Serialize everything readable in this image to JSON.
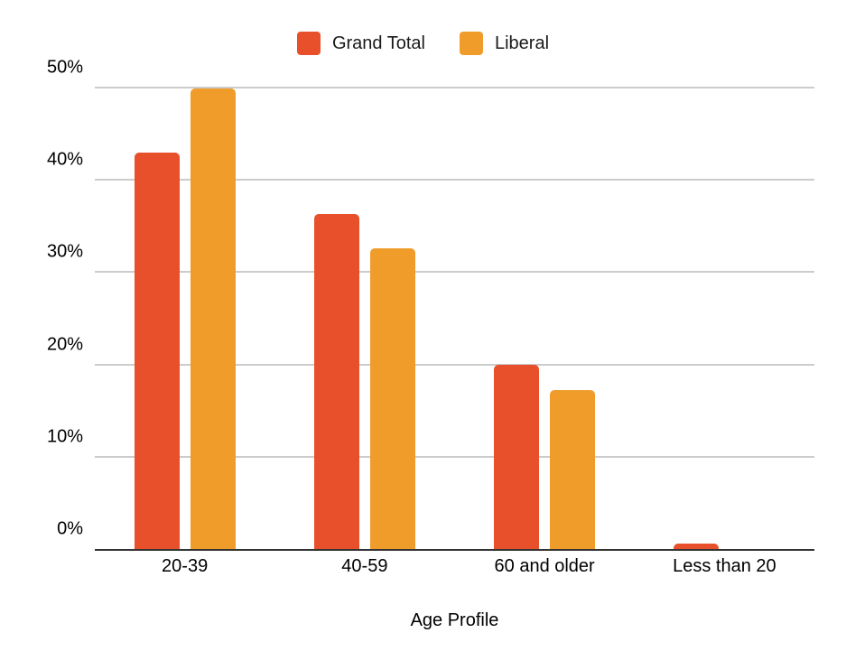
{
  "chart_data": {
    "type": "bar",
    "categories": [
      "20-39",
      "40-59",
      "60 and older",
      "Less than 20"
    ],
    "series": [
      {
        "name": "Grand Total",
        "color": "#E8502B",
        "values": [
          43.0,
          36.3,
          20.0,
          0.6
        ]
      },
      {
        "name": "Liberal",
        "color": "#F09C2B",
        "values": [
          49.9,
          32.6,
          17.2,
          0.0
        ]
      }
    ],
    "xlabel": "Age Profile",
    "ylabel": "",
    "ylim": [
      0,
      50
    ],
    "yticks": [
      "0%",
      "10%",
      "20%",
      "30%",
      "40%",
      "50%"
    ],
    "grid": true,
    "legend_position": "top",
    "colors": {
      "gridline": "#cccccc",
      "axis_line": "#333333",
      "text": "#000000"
    }
  }
}
